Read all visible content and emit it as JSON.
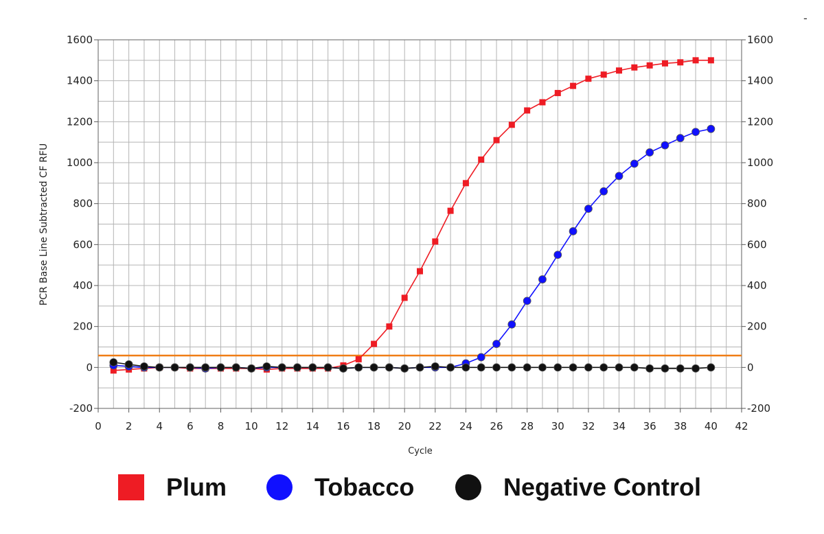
{
  "chart_data": {
    "type": "line",
    "xlabel": "Cycle",
    "ylabel": "PCR Base Line Subtracted CF RFU",
    "xlim": [
      0,
      42
    ],
    "ylim": [
      -200,
      1600
    ],
    "x_ticks": [
      "0",
      "2",
      "4",
      "6",
      "8",
      "10",
      "12",
      "14",
      "16",
      "18",
      "20",
      "22",
      "24",
      "26",
      "28",
      "30",
      "32",
      "34",
      "36",
      "38",
      "40",
      "42"
    ],
    "y_ticks": [
      "-200",
      "0",
      "200",
      "400",
      "600",
      "800",
      "1000",
      "1200",
      "1400",
      "1600"
    ],
    "y_ticks_right": [
      "-200",
      "0",
      "200",
      "400",
      "600",
      "800",
      "1000",
      "1200",
      "1400",
      "1600"
    ],
    "grid": true,
    "threshold": {
      "value": 58,
      "color": "#f07d14"
    },
    "x": [
      1,
      2,
      3,
      4,
      5,
      6,
      7,
      8,
      9,
      10,
      11,
      12,
      13,
      14,
      15,
      16,
      17,
      18,
      19,
      20,
      21,
      22,
      23,
      24,
      25,
      26,
      27,
      28,
      29,
      30,
      31,
      32,
      33,
      34,
      35,
      36,
      37,
      38,
      39,
      40
    ],
    "series": [
      {
        "name": "Plum",
        "color": "#ee1c24",
        "marker": "square",
        "values": [
          -15,
          -10,
          -5,
          0,
          0,
          -5,
          -5,
          -5,
          -5,
          -5,
          -10,
          -5,
          -5,
          -5,
          -5,
          10,
          40,
          115,
          200,
          340,
          470,
          615,
          765,
          900,
          1015,
          1110,
          1185,
          1255,
          1295,
          1340,
          1375,
          1410,
          1430,
          1450,
          1465,
          1475,
          1485,
          1490,
          1500,
          1500
        ]
      },
      {
        "name": "Tobacco",
        "color": "#1010ff",
        "marker": "circle",
        "values": [
          10,
          5,
          0,
          0,
          0,
          0,
          -5,
          0,
          0,
          -5,
          0,
          0,
          0,
          0,
          0,
          -5,
          0,
          0,
          0,
          -5,
          0,
          0,
          0,
          20,
          50,
          115,
          210,
          325,
          430,
          550,
          665,
          775,
          860,
          935,
          995,
          1050,
          1085,
          1120,
          1150,
          1165
        ]
      },
      {
        "name": "Negative Control",
        "color": "#111111",
        "marker": "circle",
        "values": [
          25,
          15,
          5,
          0,
          0,
          0,
          0,
          0,
          0,
          -5,
          5,
          0,
          0,
          0,
          0,
          -5,
          0,
          0,
          0,
          -5,
          0,
          5,
          0,
          0,
          0,
          0,
          0,
          0,
          0,
          0,
          0,
          0,
          0,
          0,
          0,
          -5,
          -5,
          -5,
          -5,
          0
        ]
      }
    ]
  },
  "legend": {
    "items": [
      {
        "label": "Plum",
        "color": "#ee1c24",
        "marker": "square"
      },
      {
        "label": "Tobacco",
        "color": "#1010ff",
        "marker": "circle"
      },
      {
        "label": "Negative Control",
        "color": "#111111",
        "marker": "circle"
      }
    ]
  },
  "page": {
    "corner_mark": "-"
  }
}
